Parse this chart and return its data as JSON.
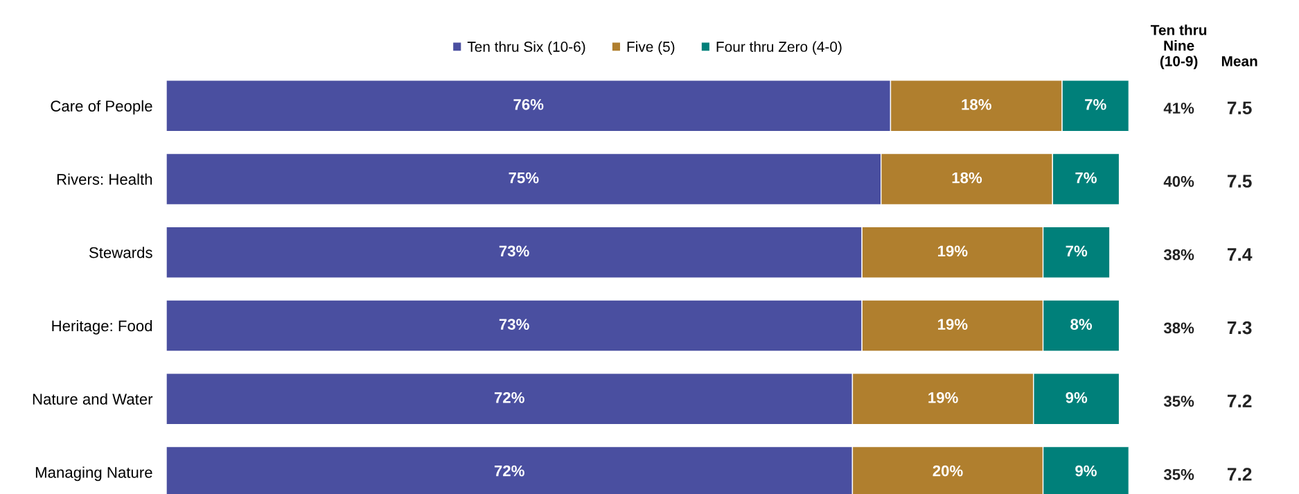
{
  "chart_data": {
    "type": "bar",
    "orientation": "horizontal",
    "stacked": true,
    "categories": [
      "Care of People",
      "Rivers: Health",
      "Stewards",
      "Heritage: Food",
      "Nature and Water",
      "Managing Nature"
    ],
    "series": [
      {
        "name": "Ten thru Six (10-6)",
        "color": "#4a4fa0",
        "values": [
          76,
          75,
          73,
          73,
          72,
          72
        ],
        "value_labels": [
          "76%",
          "75%",
          "73%",
          "73%",
          "72%",
          "72%"
        ]
      },
      {
        "name": "Five (5)",
        "color": "#b07f2e",
        "values": [
          18,
          18,
          19,
          19,
          19,
          20
        ],
        "value_labels": [
          "18%",
          "18%",
          "19%",
          "19%",
          "19%",
          "20%"
        ]
      },
      {
        "name": "Four thru Zero (4-0)",
        "color": "#00807a",
        "values": [
          7,
          7,
          7,
          8,
          9,
          9
        ],
        "value_labels": [
          "7%",
          "7%",
          "7%",
          "8%",
          "9%",
          "9%"
        ]
      }
    ],
    "xlim": [
      0,
      101
    ],
    "tick_labels": "y",
    "legend": "top",
    "grid": false,
    "annotations": [
      "Ten thru\nNine\n(10-9)",
      "Mean",
      "41%",
      "7.5",
      "40%",
      "7.5",
      "38%",
      "7.4",
      "38%",
      "7.3",
      "35%",
      "7.2",
      "35%",
      "7.2"
    ]
  }
}
